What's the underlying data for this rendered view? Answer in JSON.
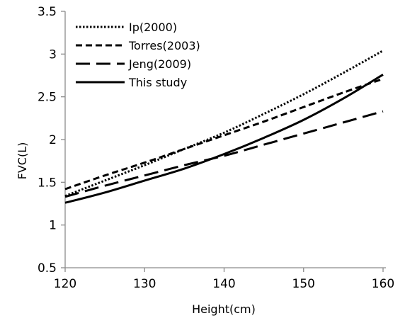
{
  "chart_data": {
    "type": "line",
    "title": "",
    "xlabel": "Height(cm)",
    "ylabel": "FVC(L)",
    "xlim": [
      120,
      160
    ],
    "ylim": [
      0.5,
      3.5
    ],
    "x_ticks": [
      120,
      130,
      140,
      150,
      160
    ],
    "y_ticks": [
      0.5,
      1,
      1.5,
      2,
      2.5,
      3,
      3.5
    ],
    "x_tick_labels": [
      "120",
      "130",
      "140",
      "150",
      "160"
    ],
    "y_tick_labels": [
      "0.5",
      "1",
      "1.5",
      "2",
      "2.5",
      "3",
      "3.5"
    ],
    "grid": false,
    "legend_position": "top-left",
    "x": [
      120,
      125,
      130,
      135,
      140,
      145,
      150,
      155,
      160
    ],
    "series": [
      {
        "name": "Ip(2000)",
        "style": "dotted",
        "color": "#000000",
        "values": [
          1.34,
          1.52,
          1.7,
          1.89,
          2.08,
          2.3,
          2.53,
          2.78,
          3.04
        ]
      },
      {
        "name": "Torres(2003)",
        "style": "short-dash",
        "color": "#000000",
        "values": [
          1.42,
          1.58,
          1.73,
          1.89,
          2.05,
          2.21,
          2.38,
          2.55,
          2.71
        ]
      },
      {
        "name": "Jeng(2009)",
        "style": "long-dash",
        "color": "#000000",
        "values": [
          1.33,
          1.46,
          1.58,
          1.7,
          1.81,
          1.94,
          2.07,
          2.2,
          2.33
        ]
      },
      {
        "name": "This study",
        "style": "solid",
        "color": "#000000",
        "values": [
          1.26,
          1.38,
          1.52,
          1.66,
          1.83,
          2.02,
          2.23,
          2.48,
          2.76
        ]
      }
    ]
  }
}
